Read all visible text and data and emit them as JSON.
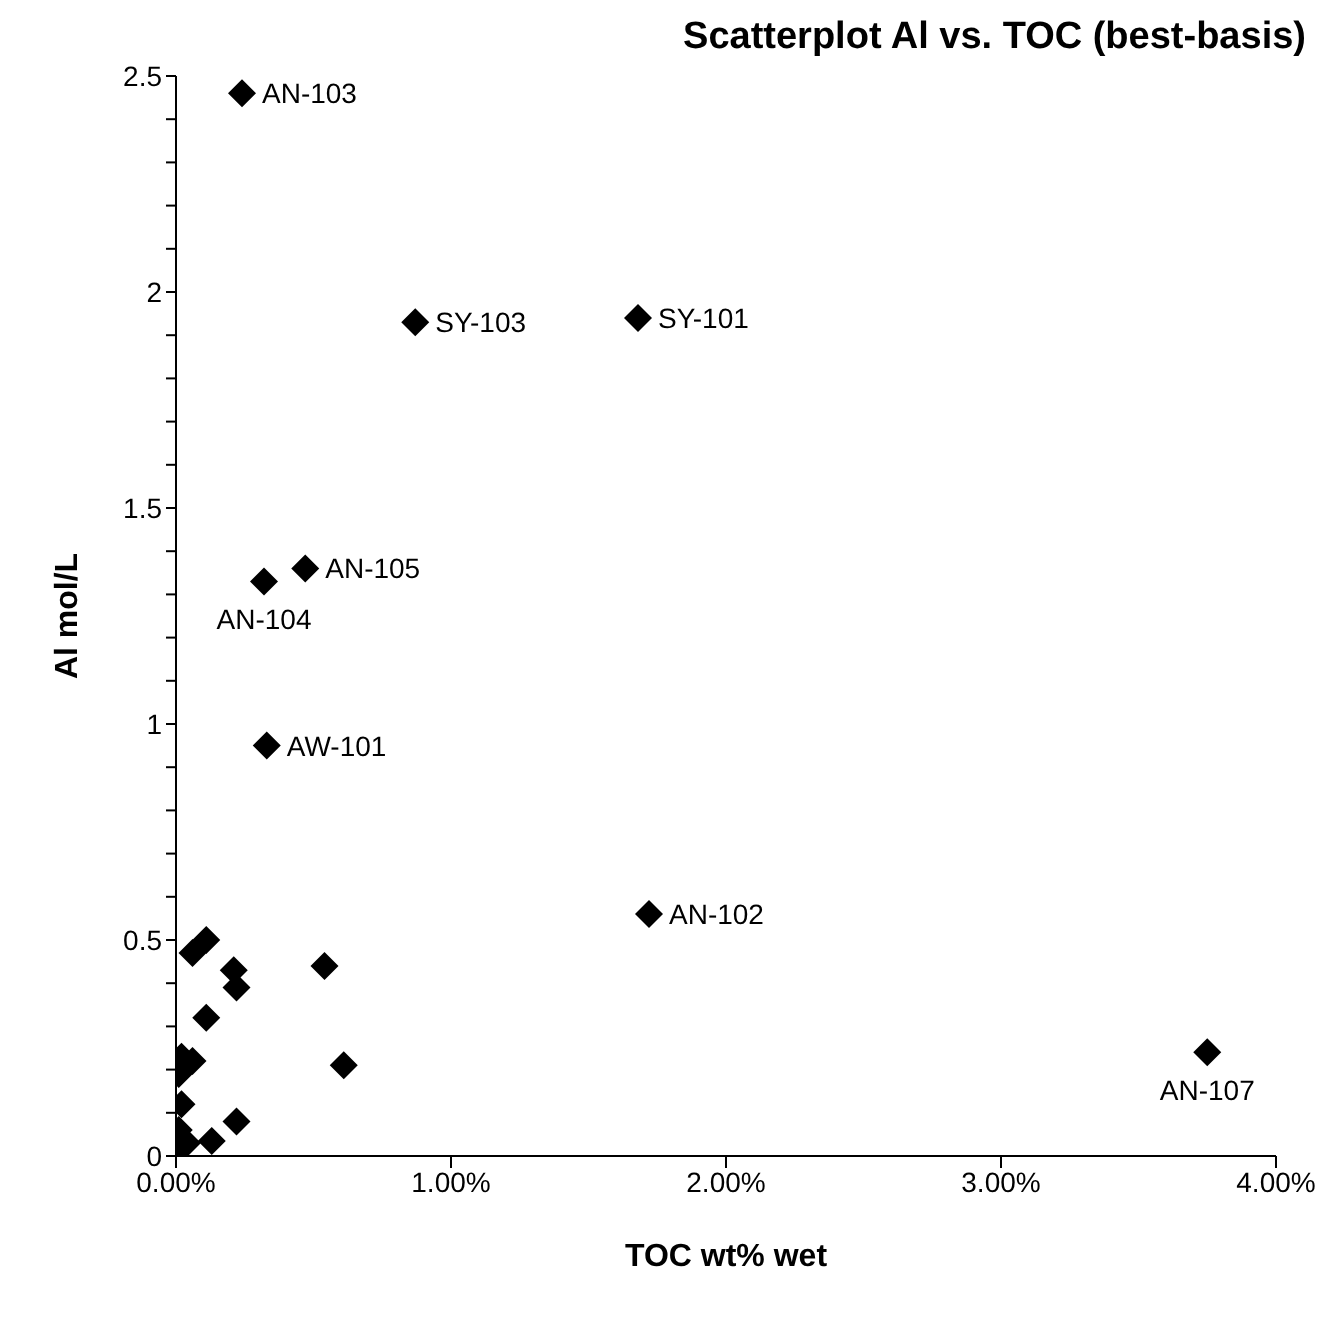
{
  "chart_data": {
    "type": "scatter",
    "title": "Scatterplot Al vs. TOC (best-basis)",
    "xlabel": "TOC wt% wet",
    "ylabel": "Al mol/L",
    "marker": "diamond",
    "grid": false,
    "legend": false,
    "xlim": [
      0,
      4
    ],
    "xticks": [
      {
        "value": 0,
        "label": "0.00%"
      },
      {
        "value": 1,
        "label": "1.00%"
      },
      {
        "value": 2,
        "label": "2.00%"
      },
      {
        "value": 3,
        "label": "3.00%"
      },
      {
        "value": 4,
        "label": "4.00%"
      }
    ],
    "ylim": [
      0,
      2.5
    ],
    "yticks": [
      0,
      {
        "value": 0.1,
        "label": null
      },
      {
        "value": 0.2,
        "label": null
      },
      {
        "value": 0.3,
        "label": null
      },
      {
        "value": 0.4,
        "label": null
      },
      0.5,
      {
        "value": 0.6,
        "label": null
      },
      {
        "value": 0.7,
        "label": null
      },
      {
        "value": 0.8,
        "label": null
      },
      {
        "value": 0.9,
        "label": null
      },
      1,
      {
        "value": 1.1,
        "label": null
      },
      {
        "value": 1.2,
        "label": null
      },
      {
        "value": 1.3,
        "label": null
      },
      {
        "value": 1.4,
        "label": null
      },
      1.5,
      {
        "value": 1.6,
        "label": null
      },
      {
        "value": 1.7,
        "label": null
      },
      {
        "value": 1.8,
        "label": null
      },
      {
        "value": 1.9,
        "label": null
      },
      2,
      {
        "value": 2.1,
        "label": null
      },
      {
        "value": 2.2,
        "label": null
      },
      {
        "value": 2.3,
        "label": null
      },
      {
        "value": 2.4,
        "label": null
      },
      2.5
    ],
    "series": [
      {
        "color": "#000000",
        "x": [
          0.24,
          0.87,
          1.68,
          0.32,
          0.47,
          0.33,
          1.72,
          3.75,
          0.11,
          0.06,
          0.21,
          0.54,
          0.22,
          0.11,
          0.02,
          0.06,
          0.01,
          0.61,
          0.02,
          0.22,
          0.01,
          0.13,
          0.04,
          0.0
        ],
        "values": [
          2.46,
          1.93,
          1.94,
          1.33,
          1.36,
          0.95,
          0.56,
          0.24,
          0.5,
          0.47,
          0.43,
          0.44,
          0.39,
          0.32,
          0.23,
          0.22,
          0.19,
          0.21,
          0.12,
          0.08,
          0.06,
          0.035,
          0.03,
          0.01
        ]
      }
    ],
    "annotations": [
      {
        "text": "AN-103",
        "x": 0.24,
        "y": 2.46
      },
      {
        "text": "SY-103",
        "x": 0.87,
        "y": 1.93
      },
      {
        "text": "SY-101",
        "x": 1.68,
        "y": 1.94
      },
      {
        "text": "AN-104",
        "x": 0.32,
        "y": 1.33
      },
      {
        "text": "AN-105",
        "x": 0.47,
        "y": 1.36
      },
      {
        "text": "AW-101",
        "x": 0.33,
        "y": 0.95
      },
      {
        "text": "AN-102",
        "x": 1.72,
        "y": 0.56
      },
      {
        "text": "AN-107",
        "x": 3.75,
        "y": 0.24
      }
    ]
  }
}
